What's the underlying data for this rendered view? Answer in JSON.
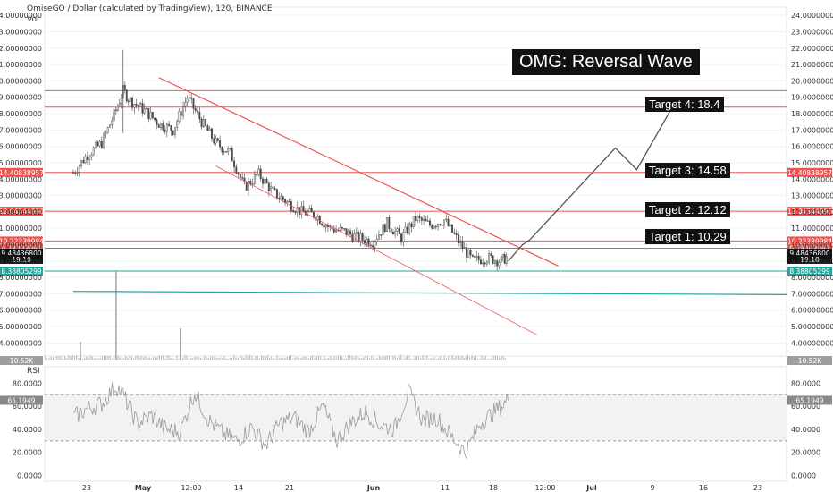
{
  "header": {
    "title": "OmiseGO / Dollar (calculated by TradingView), 120, BINANCE",
    "indicator": "Vol",
    "rsi_label": "RSI"
  },
  "annotations": {
    "main": "OMG: Reversal Wave",
    "t4": "Target 4: 18.4",
    "t3": "Target 3: 14.58",
    "t2": "Target 2: 12.12",
    "t1": "Target 1: 10.29"
  },
  "colors": {
    "candle": "#4a4a4a",
    "level_red": "#ef5350",
    "level_teal": "#26a69a",
    "trend_red": "#ef5350",
    "path": "#555555",
    "rsi_line": "#9a9a9a",
    "rsi_band": "#f2f2f5"
  },
  "chart_data": [
    {
      "type": "candlestick",
      "title": "OmiseGO / Dollar (calculated by TradingView), 120, BINANCE",
      "x_tick_labels": [
        "23",
        "May",
        "12:00",
        "14",
        "21",
        "Jun",
        "11",
        "18",
        "12:00",
        "Jul",
        "9",
        "16",
        "23"
      ],
      "y_tick_labels": [
        "24.00000000",
        "23.00000000",
        "22.00000000",
        "21.00000000",
        "20.00000000",
        "19.00000000",
        "18.00000000",
        "17.00000000",
        "16.00000000",
        "15.00000000",
        "14.00000000",
        "13.00000000",
        "12.00000000",
        "11.00000000",
        "10.00000000",
        "9.00000000",
        "8.00000000",
        "7.00000000",
        "6.00000000",
        "5.00000000",
        "4.00000000"
      ],
      "ylim": [
        3.2,
        24.5
      ],
      "price_series": {
        "x": [
          "Apr 18",
          "Apr 20",
          "Apr 22",
          "Apr 24",
          "Apr 25",
          "Apr 26",
          "Apr 28",
          "Apr 30",
          "May 2",
          "May 4",
          "May 6",
          "May 8",
          "May 10",
          "May 12",
          "May 14",
          "May 16",
          "May 18",
          "May 20",
          "May 22",
          "May 24",
          "May 26",
          "May 28",
          "May 30",
          "Jun 1",
          "Jun 3",
          "Jun 5",
          "Jun 7",
          "Jun 9",
          "Jun 11",
          "Jun 13",
          "Jun 15",
          "Jun 17",
          "Jun 18"
        ],
        "close": [
          14.4,
          15.5,
          16.2,
          18.2,
          19.4,
          18.8,
          18.2,
          17.4,
          17.0,
          19.0,
          17.5,
          16.2,
          15.6,
          13.5,
          14.3,
          13.2,
          12.6,
          12.0,
          11.8,
          11.0,
          10.8,
          10.4,
          10.2,
          11.3,
          10.4,
          11.6,
          11.2,
          11.5,
          10.2,
          9.0,
          9.2,
          9.0,
          9.3
        ]
      },
      "price_levels": [
        {
          "value": 19.4,
          "label": "",
          "color": "#ef5350"
        },
        {
          "value": 18.4,
          "label": "",
          "color": "#ef5350"
        },
        {
          "value": 14.4083,
          "label": "14.40838957",
          "color": "#ef5350"
        },
        {
          "value": 12.0434,
          "label": "12.04344990",
          "color": "#ef5350"
        },
        {
          "value": 10.2234,
          "label": "10.22339984",
          "color": "#ef5350"
        },
        {
          "value": 9.7829,
          "label": "9.78293061",
          "color": "#ef5350"
        },
        {
          "value": 8.3881,
          "label": "8.38805299",
          "color": "#26a69a"
        }
      ],
      "price_tags": [
        {
          "value": 9.4844,
          "label": "9.48436800",
          "color": "#111111"
        },
        {
          "value": 9.1,
          "label": "19:10",
          "color": "#111111"
        }
      ],
      "support_line": {
        "from": {
          "x": "Apr 18",
          "y": 7.15
        },
        "to": {
          "x": "Jul 27",
          "y": 6.95
        }
      },
      "trend_lines": [
        {
          "from": {
            "x": "Apr 30",
            "y": 20.2
          },
          "to": {
            "x": "Jun 25",
            "y": 8.7
          }
        },
        {
          "from": {
            "x": "May 8",
            "y": 14.8
          },
          "to": {
            "x": "Jun 22",
            "y": 4.5
          }
        }
      ],
      "projection_path": [
        {
          "x": "Jun 18",
          "y": 9.0
        },
        {
          "x": "Jun 20",
          "y": 10.0
        },
        {
          "x": "Jun 21",
          "y": 10.29
        },
        {
          "x": "Jul 3",
          "y": 15.9
        },
        {
          "x": "Jul 6",
          "y": 14.58
        },
        {
          "x": "Jul 11",
          "y": 18.4
        }
      ],
      "volume_label": "10.52K",
      "volume_spikes": [
        {
          "x": "Apr 24",
          "value": 1.0
        },
        {
          "x": "May 3",
          "value": 0.35
        },
        {
          "x": "Apr 19",
          "value": 0.2
        }
      ]
    },
    {
      "type": "line",
      "title": "RSI",
      "ylim": [
        -5,
        88
      ],
      "y_tick_labels": [
        "80.0000",
        "60.0000",
        "40.0000",
        "20.0000",
        "0.0000"
      ],
      "band": [
        30,
        70
      ],
      "last_value_label": "65.1949",
      "x": [
        "Apr 18",
        "Apr 20",
        "Apr 22",
        "Apr 24",
        "Apr 25",
        "Apr 27",
        "Apr 29",
        "May 1",
        "May 3",
        "May 5",
        "May 7",
        "May 9",
        "May 11",
        "May 13",
        "May 15",
        "May 17",
        "May 19",
        "May 21",
        "May 23",
        "May 25",
        "May 27",
        "May 29",
        "May 31",
        "Jun 2",
        "Jun 4",
        "Jun 6",
        "Jun 8",
        "Jun 10",
        "Jun 12",
        "Jun 14",
        "Jun 16",
        "Jun 18"
      ],
      "values": [
        50,
        58,
        62,
        78,
        70,
        45,
        52,
        40,
        38,
        72,
        48,
        36,
        30,
        42,
        26,
        45,
        50,
        38,
        60,
        30,
        46,
        55,
        44,
        40,
        72,
        48,
        50,
        34,
        20,
        45,
        55,
        65
      ]
    }
  ]
}
